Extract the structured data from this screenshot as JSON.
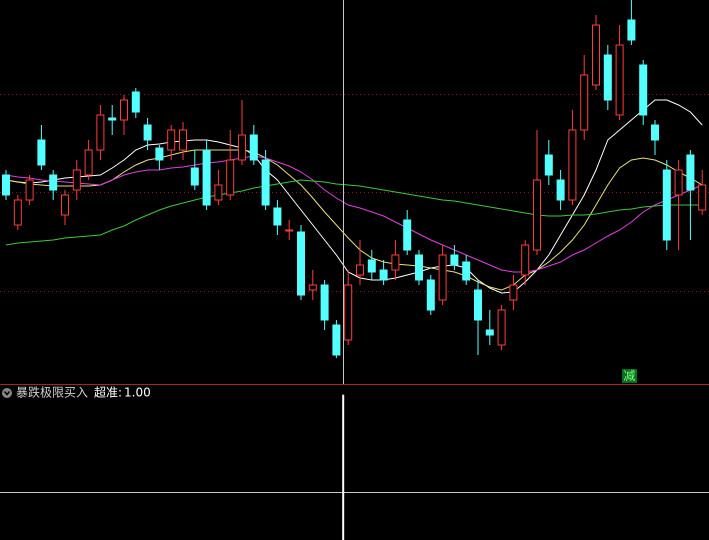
{
  "chart_data": [
    {
      "type": "candlestick",
      "ylim": [
        0,
        385
      ],
      "hlines": [
        94,
        193,
        291
      ],
      "up_color": "#ff3c3c",
      "down_color": "#54ffff",
      "candles": [
        [
          210,
          190,
          215,
          185
        ],
        [
          160,
          185,
          190,
          155
        ],
        [
          185,
          205,
          210,
          180
        ],
        [
          245,
          220,
          260,
          215
        ],
        [
          210,
          195,
          215,
          185
        ],
        [
          170,
          190,
          195,
          160
        ],
        [
          195,
          215,
          225,
          185
        ],
        [
          210,
          235,
          245,
          205
        ],
        [
          235,
          270,
          280,
          225
        ],
        [
          267,
          265,
          280,
          250
        ],
        [
          265,
          285,
          290,
          250
        ],
        [
          293,
          273,
          297,
          267
        ],
        [
          260,
          245,
          267,
          235
        ],
        [
          237,
          225,
          240,
          215
        ],
        [
          235,
          255,
          260,
          225
        ],
        [
          235,
          255,
          263,
          225
        ],
        [
          217,
          200,
          235,
          195
        ],
        [
          235,
          180,
          245,
          175
        ],
        [
          185,
          200,
          215,
          180
        ],
        [
          190,
          225,
          255,
          185
        ],
        [
          225,
          250,
          285,
          220
        ],
        [
          250,
          225,
          260,
          220
        ],
        [
          225,
          180,
          235,
          175
        ],
        [
          177,
          160,
          185,
          150
        ],
        [
          155,
          155,
          165,
          145
        ],
        [
          153,
          90,
          160,
          85
        ],
        [
          95,
          100,
          115,
          85
        ],
        [
          100,
          65,
          105,
          55
        ],
        [
          60,
          30,
          65,
          27
        ],
        [
          45,
          100,
          115,
          40
        ],
        [
          110,
          120,
          145,
          100
        ],
        [
          125,
          113,
          135,
          105
        ],
        [
          115,
          105,
          125,
          100
        ],
        [
          115,
          130,
          145,
          105
        ],
        [
          165,
          135,
          175,
          130
        ],
        [
          130,
          105,
          135,
          100
        ],
        [
          105,
          75,
          110,
          70
        ],
        [
          85,
          130,
          140,
          80
        ],
        [
          130,
          120,
          140,
          115
        ],
        [
          123,
          105,
          130,
          100
        ],
        [
          95,
          65,
          105,
          30
        ],
        [
          55,
          50,
          75,
          40
        ],
        [
          40,
          75,
          80,
          35
        ],
        [
          85,
          100,
          110,
          75
        ],
        [
          110,
          140,
          145,
          100
        ],
        [
          135,
          205,
          255,
          130
        ],
        [
          230,
          210,
          245,
          200
        ],
        [
          205,
          185,
          215,
          175
        ],
        [
          185,
          255,
          275,
          180
        ],
        [
          255,
          310,
          330,
          245
        ],
        [
          300,
          360,
          370,
          295
        ],
        [
          330,
          285,
          340,
          275
        ],
        [
          270,
          340,
          360,
          265
        ],
        [
          365,
          345,
          385,
          340
        ],
        [
          320,
          270,
          325,
          260
        ],
        [
          260,
          245,
          265,
          230
        ],
        [
          215,
          145,
          225,
          135
        ],
        [
          190,
          215,
          225,
          135
        ],
        [
          230,
          195,
          235,
          145
        ],
        [
          175,
          200,
          215,
          170
        ]
      ],
      "series": [
        {
          "color": "#ffffff",
          "values": [
            205,
            203,
            202,
            203,
            205,
            207,
            208,
            209,
            210,
            217,
            225,
            235,
            240,
            241,
            243,
            244,
            245,
            245,
            243,
            240,
            237,
            230,
            215,
            205,
            190,
            175,
            160,
            145,
            130,
            113,
            107,
            105,
            105,
            107,
            110,
            113,
            117,
            119,
            120,
            117,
            105,
            97,
            92,
            93,
            103,
            115,
            130,
            150,
            170,
            190,
            215,
            245,
            255,
            265,
            275,
            285,
            285,
            280,
            273,
            260
          ]
        },
        {
          "color": "#e8e07a",
          "values": [
            205,
            203,
            201,
            200,
            199,
            199,
            199,
            199,
            200,
            205,
            213,
            220,
            225,
            227,
            230,
            233,
            235,
            235,
            235,
            235,
            235,
            233,
            227,
            220,
            210,
            200,
            187,
            173,
            160,
            147,
            135,
            127,
            123,
            121,
            120,
            119,
            117,
            115,
            113,
            109,
            103,
            98,
            95,
            100,
            110,
            115,
            123,
            133,
            145,
            160,
            180,
            200,
            217,
            225,
            227,
            225,
            220,
            213,
            207,
            200
          ]
        },
        {
          "color": "#e040e0",
          "values": [
            210,
            208,
            207,
            205,
            204,
            203,
            202,
            201,
            200,
            205,
            210,
            213,
            215,
            215,
            217,
            218,
            220,
            222,
            223,
            225,
            227,
            229,
            227,
            223,
            219,
            213,
            205,
            195,
            187,
            180,
            177,
            173,
            169,
            163,
            157,
            151,
            145,
            140,
            135,
            130,
            125,
            120,
            115,
            113,
            113,
            115,
            119,
            123,
            130,
            135,
            142,
            149,
            155,
            163,
            173,
            180,
            185,
            190,
            195,
            200
          ]
        },
        {
          "color": "#3cc83c",
          "values": [
            140,
            142,
            143,
            144,
            145,
            147,
            148,
            149,
            150,
            155,
            159,
            165,
            170,
            175,
            179,
            182,
            185,
            188,
            190,
            192,
            194,
            197,
            199,
            201,
            203,
            205,
            204,
            203,
            201,
            200,
            199,
            197,
            195,
            193,
            191,
            189,
            187,
            185,
            184,
            182,
            180,
            178,
            176,
            174,
            172,
            170,
            169,
            169,
            170,
            170,
            171,
            173,
            175,
            176,
            178,
            179,
            180,
            180,
            180,
            180
          ]
        }
      ],
      "annotation": "减"
    },
    {
      "type": "bar",
      "title": "暴跌极限买入",
      "ylim": [
        -0.5,
        1.1
      ],
      "hlines": [
        0
      ],
      "series": [
        {
          "name": "超准:",
          "color": "#ffffff",
          "values": [
            0,
            0,
            0,
            0,
            0,
            0,
            0,
            0,
            0,
            0,
            0,
            0,
            0,
            0,
            0,
            0,
            0,
            0,
            0,
            0,
            0,
            0,
            0,
            0,
            0,
            0,
            0,
            0,
            0,
            1,
            0,
            0,
            0,
            0,
            0,
            0,
            0,
            0,
            0,
            0,
            0,
            0,
            0,
            0,
            0,
            0,
            0,
            0,
            0,
            0,
            0,
            0,
            0,
            0,
            0,
            0,
            0,
            0,
            0,
            0
          ],
          "readout": {
            "value": 1,
            "label": "1.00"
          }
        }
      ]
    }
  ]
}
